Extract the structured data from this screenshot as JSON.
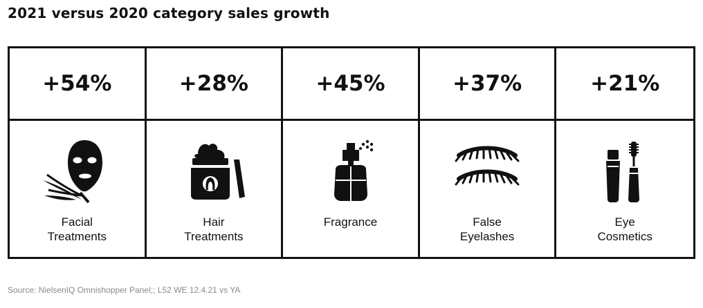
{
  "title": "2021 versus 2020 category sales growth",
  "chart_data": {
    "type": "table",
    "title": "2021 versus 2020 category sales growth",
    "categories": [
      "Facial Treatments",
      "Hair Treatments",
      "Fragrance",
      "False Eyelashes",
      "Eye Cosmetics"
    ],
    "values": [
      54,
      28,
      45,
      37,
      21
    ],
    "value_labels": [
      "+54%",
      "+28%",
      "+45%",
      "+37%",
      "+21%"
    ],
    "label_lines": [
      "Facial\nTreatments",
      "Hair\nTreatments",
      "Fragrance",
      "False\nEyelashes",
      "Eye\nCosmetics"
    ],
    "icons": [
      "face-mask-icon",
      "hair-cream-jar-icon",
      "perfume-bottle-icon",
      "eyelashes-icon",
      "mascara-icon"
    ]
  },
  "source": "Source: NielsenIQ Omnishopper Panel;; L52 WE 12.4.21 vs YA"
}
